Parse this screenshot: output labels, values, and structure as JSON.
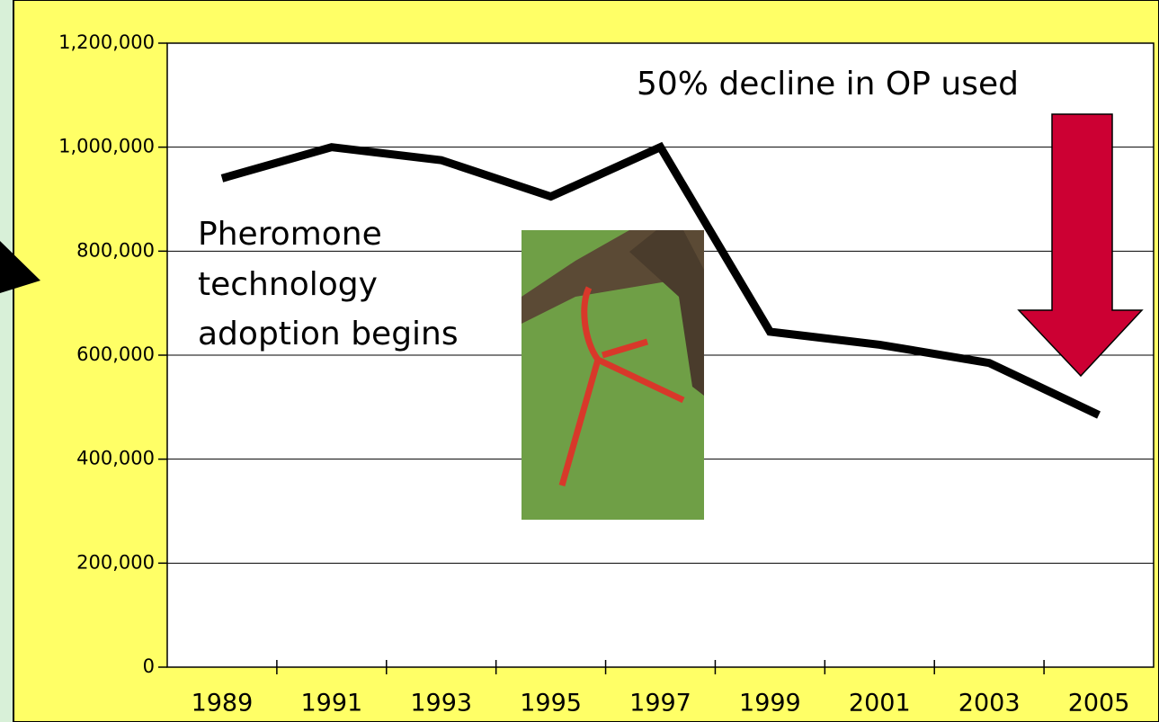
{
  "chart_data": {
    "type": "line",
    "annotations": [
      "50% decline in OP used",
      "Pheromone",
      "technology",
      "adoption begins"
    ],
    "categories": [
      "1989",
      "1991",
      "1993",
      "1995",
      "1997",
      "1999",
      "2001",
      "2003",
      "2005"
    ],
    "values": [
      940000,
      1000000,
      975000,
      905000,
      1000000,
      645000,
      620000,
      585000,
      485000
    ],
    "color": "#000000",
    "ylim": [
      0,
      1200000
    ],
    "yticks": [
      0,
      {
        "value": 200000,
        "label": "200,000"
      },
      {
        "value": 400000,
        "label": "400,000"
      },
      {
        "value": 600000,
        "label": "600,000"
      },
      {
        "value": 800000,
        "label": "800,000"
      },
      {
        "value": 1000000,
        "label": "1,000,000"
      },
      {
        "value": 1200000,
        "label": "1,200,000"
      }
    ],
    "grid": true
  }
}
